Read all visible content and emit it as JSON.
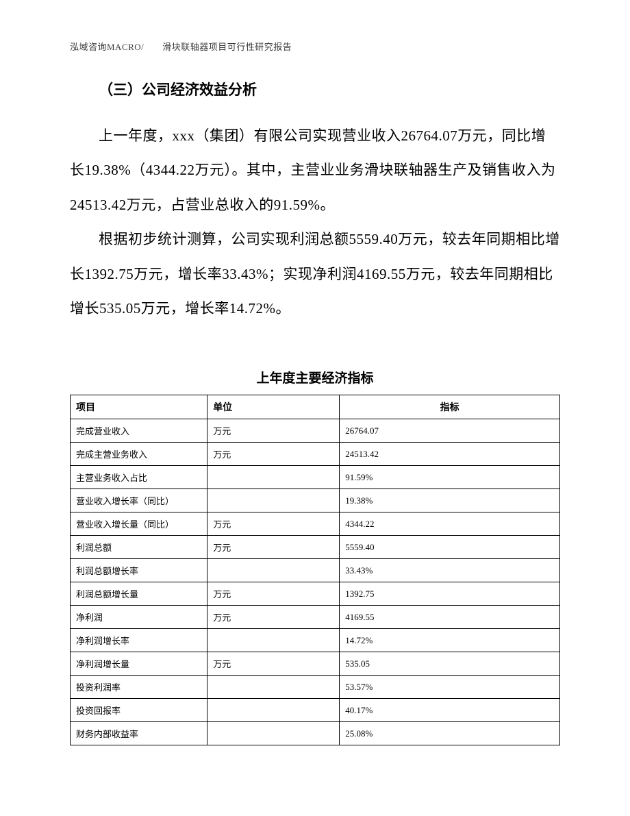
{
  "header": {
    "text": "泓域咨询MACRO/　　滑块联轴器项目可行性研究报告"
  },
  "section": {
    "heading": "（三）公司经济效益分析",
    "p1": "上一年度，xxx（集团）有限公司实现营业收入26764.07万元，同比增长19.38%（4344.22万元）。其中，主营业业务滑块联轴器生产及销售收入为24513.42万元，占营业总收入的91.59%。",
    "p2": "根据初步统计测算，公司实现利润总额5559.40万元，较去年同期相比增长1392.75万元，增长率33.43%；实现净利润4169.55万元，较去年同期相比增长535.05万元，增长率14.72%。"
  },
  "table": {
    "title": "上年度主要经济指标",
    "columns": [
      "项目",
      "单位",
      "指标"
    ],
    "rows": [
      [
        "完成营业收入",
        "万元",
        "26764.07"
      ],
      [
        "完成主营业务收入",
        "万元",
        "24513.42"
      ],
      [
        "主营业务收入占比",
        "",
        "91.59%"
      ],
      [
        "营业收入增长率（同比）",
        "",
        "19.38%"
      ],
      [
        "营业收入增长量（同比）",
        "万元",
        "4344.22"
      ],
      [
        "利润总额",
        "万元",
        "5559.40"
      ],
      [
        "利润总额增长率",
        "",
        "33.43%"
      ],
      [
        "利润总额增长量",
        "万元",
        "1392.75"
      ],
      [
        "净利润",
        "万元",
        "4169.55"
      ],
      [
        "净利润增长率",
        "",
        "14.72%"
      ],
      [
        "净利润增长量",
        "万元",
        "535.05"
      ],
      [
        "投资利润率",
        "",
        "53.57%"
      ],
      [
        "投资回报率",
        "",
        "40.17%"
      ],
      [
        "财务内部收益率",
        "",
        "25.08%"
      ]
    ]
  }
}
